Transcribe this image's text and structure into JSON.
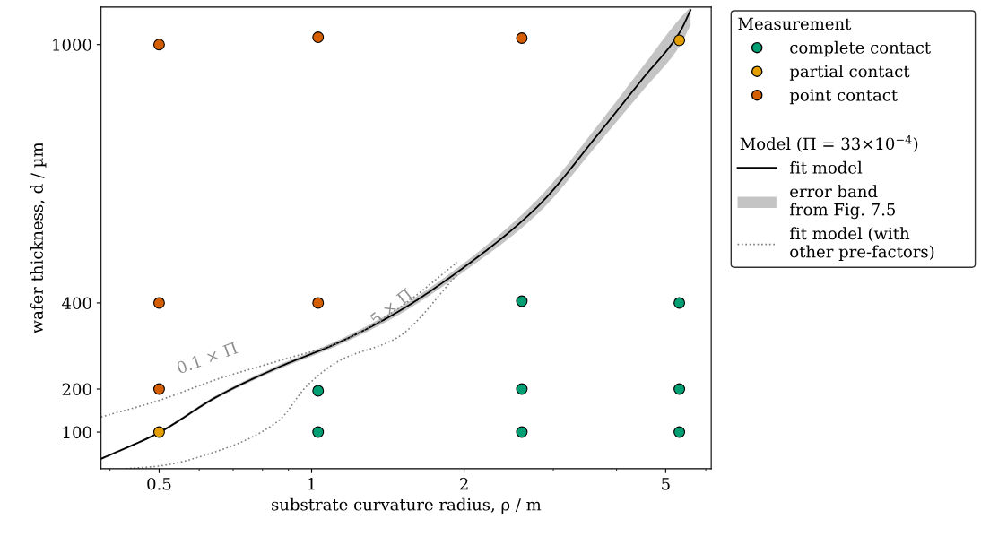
{
  "chart_data": {
    "type": "scatter",
    "xlabel": "substrate curvature radius, ρ / m",
    "ylabel": "wafer thickness, d / µm",
    "legend_title": "Measurement",
    "log": "x",
    "xlim": [
      0.384,
      6.15
    ],
    "ylim": [
      15,
      1087
    ],
    "xticks": [
      0.5,
      1,
      2,
      5
    ],
    "yticks": [
      100,
      200,
      400,
      1000
    ],
    "grid": false,
    "legend": "right",
    "marker": "circle",
    "series": [
      {
        "name": "complete contact",
        "color": "#009e73",
        "x": [
          2.6,
          5.32,
          1.03,
          2.6,
          5.32,
          1.03,
          2.6,
          5.32
        ],
        "values": [
          404,
          400,
          196,
          200,
          200,
          100,
          100,
          100
        ]
      },
      {
        "name": "partial contact",
        "color": "#e69f00",
        "x": [
          5.32,
          0.5
        ],
        "values": [
          1010,
          100
        ]
      },
      {
        "name": "point contact",
        "color": "#d55e00",
        "x": [
          0.5,
          1.03,
          2.6,
          0.5,
          1.03,
          0.5
        ],
        "values": [
          1000,
          1017,
          1015,
          400,
          400,
          200
        ]
      },
      {
        "name": "fit model",
        "type": "line",
        "color": "#000000",
        "line_style": "solid",
        "marker": "none",
        "x": [
          0.384,
          0.498,
          0.652,
          0.858,
          1.131,
          1.474,
          2.0,
          2.8,
          3.68,
          4.52,
          5.32,
          5.6
        ],
        "values": [
          38,
          98,
          183,
          250,
          308,
          378,
          483,
          625,
          792,
          923,
          1027,
          1080
        ],
        "lower": [
          35,
          95,
          179,
          245,
          302,
          370,
          473,
          608,
          770,
          895,
          995,
          1045
        ],
        "upper": [
          40,
          101,
          187,
          255,
          314,
          386,
          493,
          642,
          814,
          951,
          1059,
          1087
        ]
      },
      {
        "name": "fit model (with\nother pre-factors)",
        "type": "line",
        "color": "#808080",
        "line_style": "dotted",
        "marker": "none",
        "x": [
          0.384,
          0.498,
          0.652,
          0.858,
          1.131,
          1.474,
          1.937
        ],
        "values": [
          135,
          173,
          223,
          265,
          308,
          385,
          494
        ]
      },
      {
        "type": "line",
        "color": "#808080",
        "line_style": "dotted",
        "marker": "none",
        "x": [
          0.43,
          0.498,
          0.652,
          0.858,
          0.98,
          1.131,
          1.474,
          1.937
        ],
        "values": [
          15,
          21,
          56,
          125,
          208,
          265,
          319,
          465
        ]
      }
    ],
    "annotations": [
      {
        "text": "0.1 × Π",
        "x": 0.652,
        "y": 223
      },
      {
        "text": "5 × Π",
        "x": 1.474,
        "y": 319
      },
      "Model (Π = 33×10$^{−4}$)",
      "error band\nfrom Fig. 7.5"
    ]
  }
}
